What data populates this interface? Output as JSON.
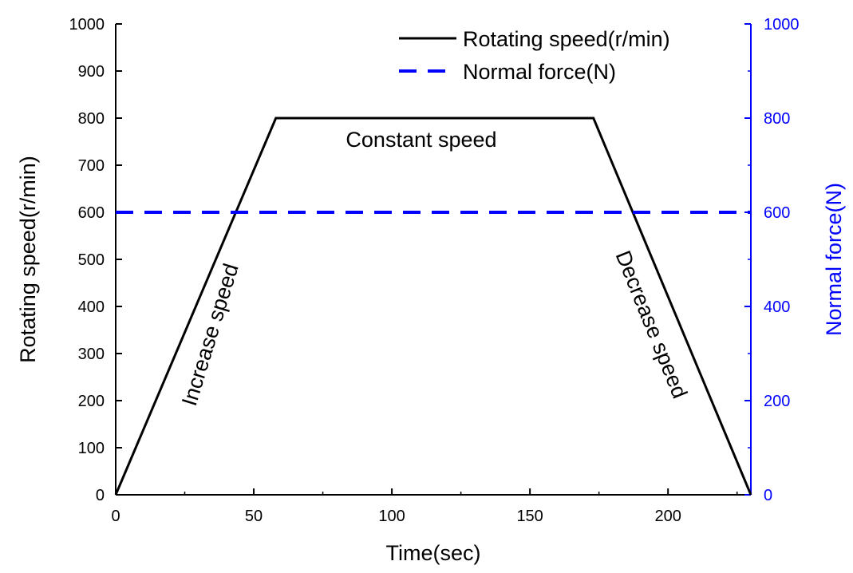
{
  "chart_data": {
    "type": "line",
    "xlabel": "Time(sec)",
    "ylabel": "Rotating speed(r/min)",
    "y2label": "Normal force(N)",
    "xlim": [
      0,
      230
    ],
    "ylim": [
      0,
      1000
    ],
    "y2lim": [
      0,
      1000
    ],
    "xticks": [
      0,
      50,
      100,
      150,
      200
    ],
    "yticks": [
      0,
      100,
      200,
      300,
      400,
      500,
      600,
      700,
      800,
      900,
      1000
    ],
    "y2ticks": [
      0,
      200,
      400,
      600,
      800,
      1000
    ],
    "grid": false,
    "legend_position": "top-right",
    "series": [
      {
        "name": "Rotating speed(r/min)",
        "axis": "left",
        "style": "solid",
        "color": "#000000",
        "x": [
          0,
          58,
          173,
          230
        ],
        "y": [
          0,
          800,
          800,
          0
        ]
      },
      {
        "name": "Normal force(N)",
        "axis": "right",
        "style": "dashed",
        "color": "#0000ff",
        "x": [
          0,
          230
        ],
        "y": [
          600,
          600
        ]
      }
    ],
    "annotations": [
      {
        "text": "Constant speed",
        "x": 115,
        "y": 755
      },
      {
        "text": "Increase speed",
        "x": 35,
        "y": 400
      },
      {
        "text": "Decrease speed",
        "x": 197,
        "y": 400
      }
    ]
  },
  "colors": {
    "left_axis": "#000000",
    "right_axis": "#0000ff"
  }
}
